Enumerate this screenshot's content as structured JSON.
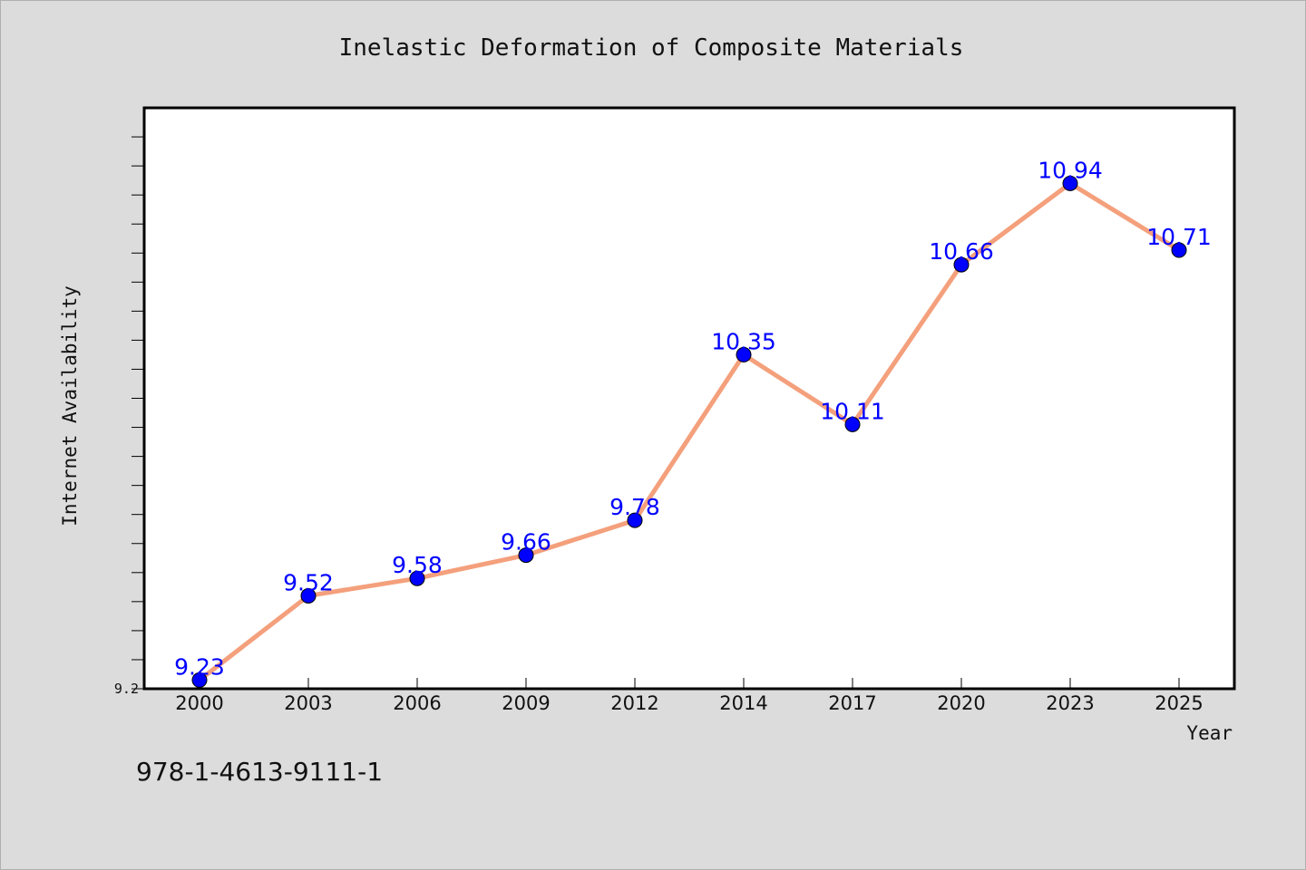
{
  "chart_data": {
    "type": "line",
    "title": "Inelastic Deformation of Composite Materials",
    "xlabel": "Year",
    "ylabel": "Internet Availability",
    "categories": [
      "2000",
      "2003",
      "2006",
      "2009",
      "2012",
      "2014",
      "2017",
      "2020",
      "2023",
      "2025"
    ],
    "series": [
      {
        "values": [
          9.23,
          9.52,
          9.58,
          9.66,
          9.78,
          10.35,
          10.11,
          10.66,
          10.94,
          10.71
        ]
      }
    ],
    "data_labels": [
      "9.23",
      "9.52",
      "9.58",
      "9.66",
      "9.78",
      "10.35",
      "10.11",
      "10.66",
      "10.94",
      "10.71"
    ],
    "y_tick_labels": [
      "9.2"
    ],
    "ylim": [
      9.2,
      11.2
    ],
    "grid": false,
    "colors": {
      "line": "#f4a07c",
      "marker": "#0000ff",
      "data_label": "#0000ff",
      "background": "#dcdcdc",
      "plot_area": "#ffffff"
    }
  },
  "footer": {
    "isbn": "978-1-4613-9111-1"
  }
}
